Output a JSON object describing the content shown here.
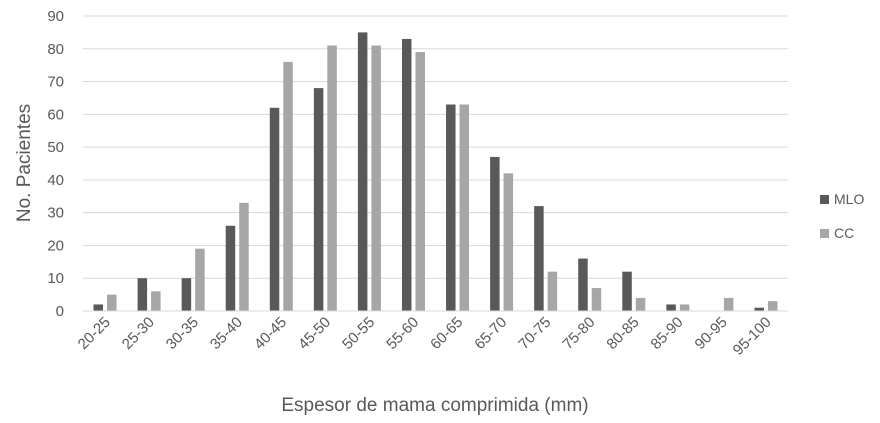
{
  "chart_data": {
    "type": "bar",
    "categories": [
      "20-25",
      "25-30",
      "30-35",
      "35-40",
      "40-45",
      "45-50",
      "50-55",
      "55-60",
      "60-65",
      "65-70",
      "70-75",
      "75-80",
      "80-85",
      "85-90",
      "90-95",
      "95-100"
    ],
    "series": [
      {
        "name": "MLO",
        "color": "#595959",
        "values": [
          2,
          10,
          10,
          26,
          62,
          68,
          85,
          83,
          63,
          47,
          32,
          16,
          12,
          2,
          0,
          1
        ]
      },
      {
        "name": "CC",
        "color": "#a6a6a6",
        "values": [
          5,
          6,
          19,
          33,
          76,
          81,
          81,
          79,
          63,
          42,
          12,
          7,
          4,
          2,
          4,
          3
        ]
      }
    ],
    "ylabel": "No. Pacientes",
    "xlabel": "Espesor de mama comprimida (mm)",
    "ylim": [
      0,
      90
    ],
    "yticks": [
      0,
      10,
      20,
      30,
      40,
      50,
      60,
      70,
      80,
      90
    ],
    "grid": true,
    "legend_position": "right"
  }
}
